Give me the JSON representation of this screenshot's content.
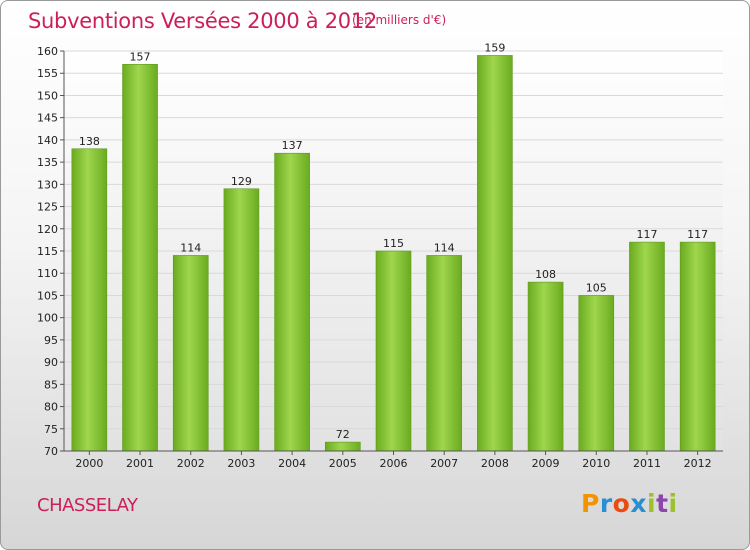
{
  "header": {
    "title": "Subventions Versées 2000 à 2012",
    "units": "(en milliers d'€)"
  },
  "footer": {
    "commune": "CHASSELAY",
    "logo": "Proxiti",
    "logo_colors": [
      "#f29400",
      "#2a8fd1",
      "#e94b10",
      "#2a8fd1",
      "#9dc12b",
      "#8e44ad",
      "#9dc12b"
    ]
  },
  "colors": {
    "bar": "#7dbb2b",
    "bar_light": "#9fd64e",
    "accent": "#cc1f5a"
  },
  "chart_data": {
    "type": "bar",
    "title": "Subventions Versées 2000 à 2012",
    "xlabel": "",
    "ylabel": "",
    "categories": [
      "2000",
      "2001",
      "2002",
      "2003",
      "2004",
      "2005",
      "2006",
      "2007",
      "2008",
      "2009",
      "2010",
      "2011",
      "2012"
    ],
    "values": [
      138,
      157,
      114,
      129,
      137,
      72,
      115,
      114,
      159,
      108,
      105,
      117,
      117
    ],
    "ylim": [
      70,
      160
    ],
    "yticks": [
      70,
      75,
      80,
      85,
      90,
      95,
      100,
      105,
      110,
      115,
      120,
      125,
      130,
      135,
      140,
      145,
      150,
      155,
      160
    ],
    "grid": true,
    "data_labels": true
  }
}
